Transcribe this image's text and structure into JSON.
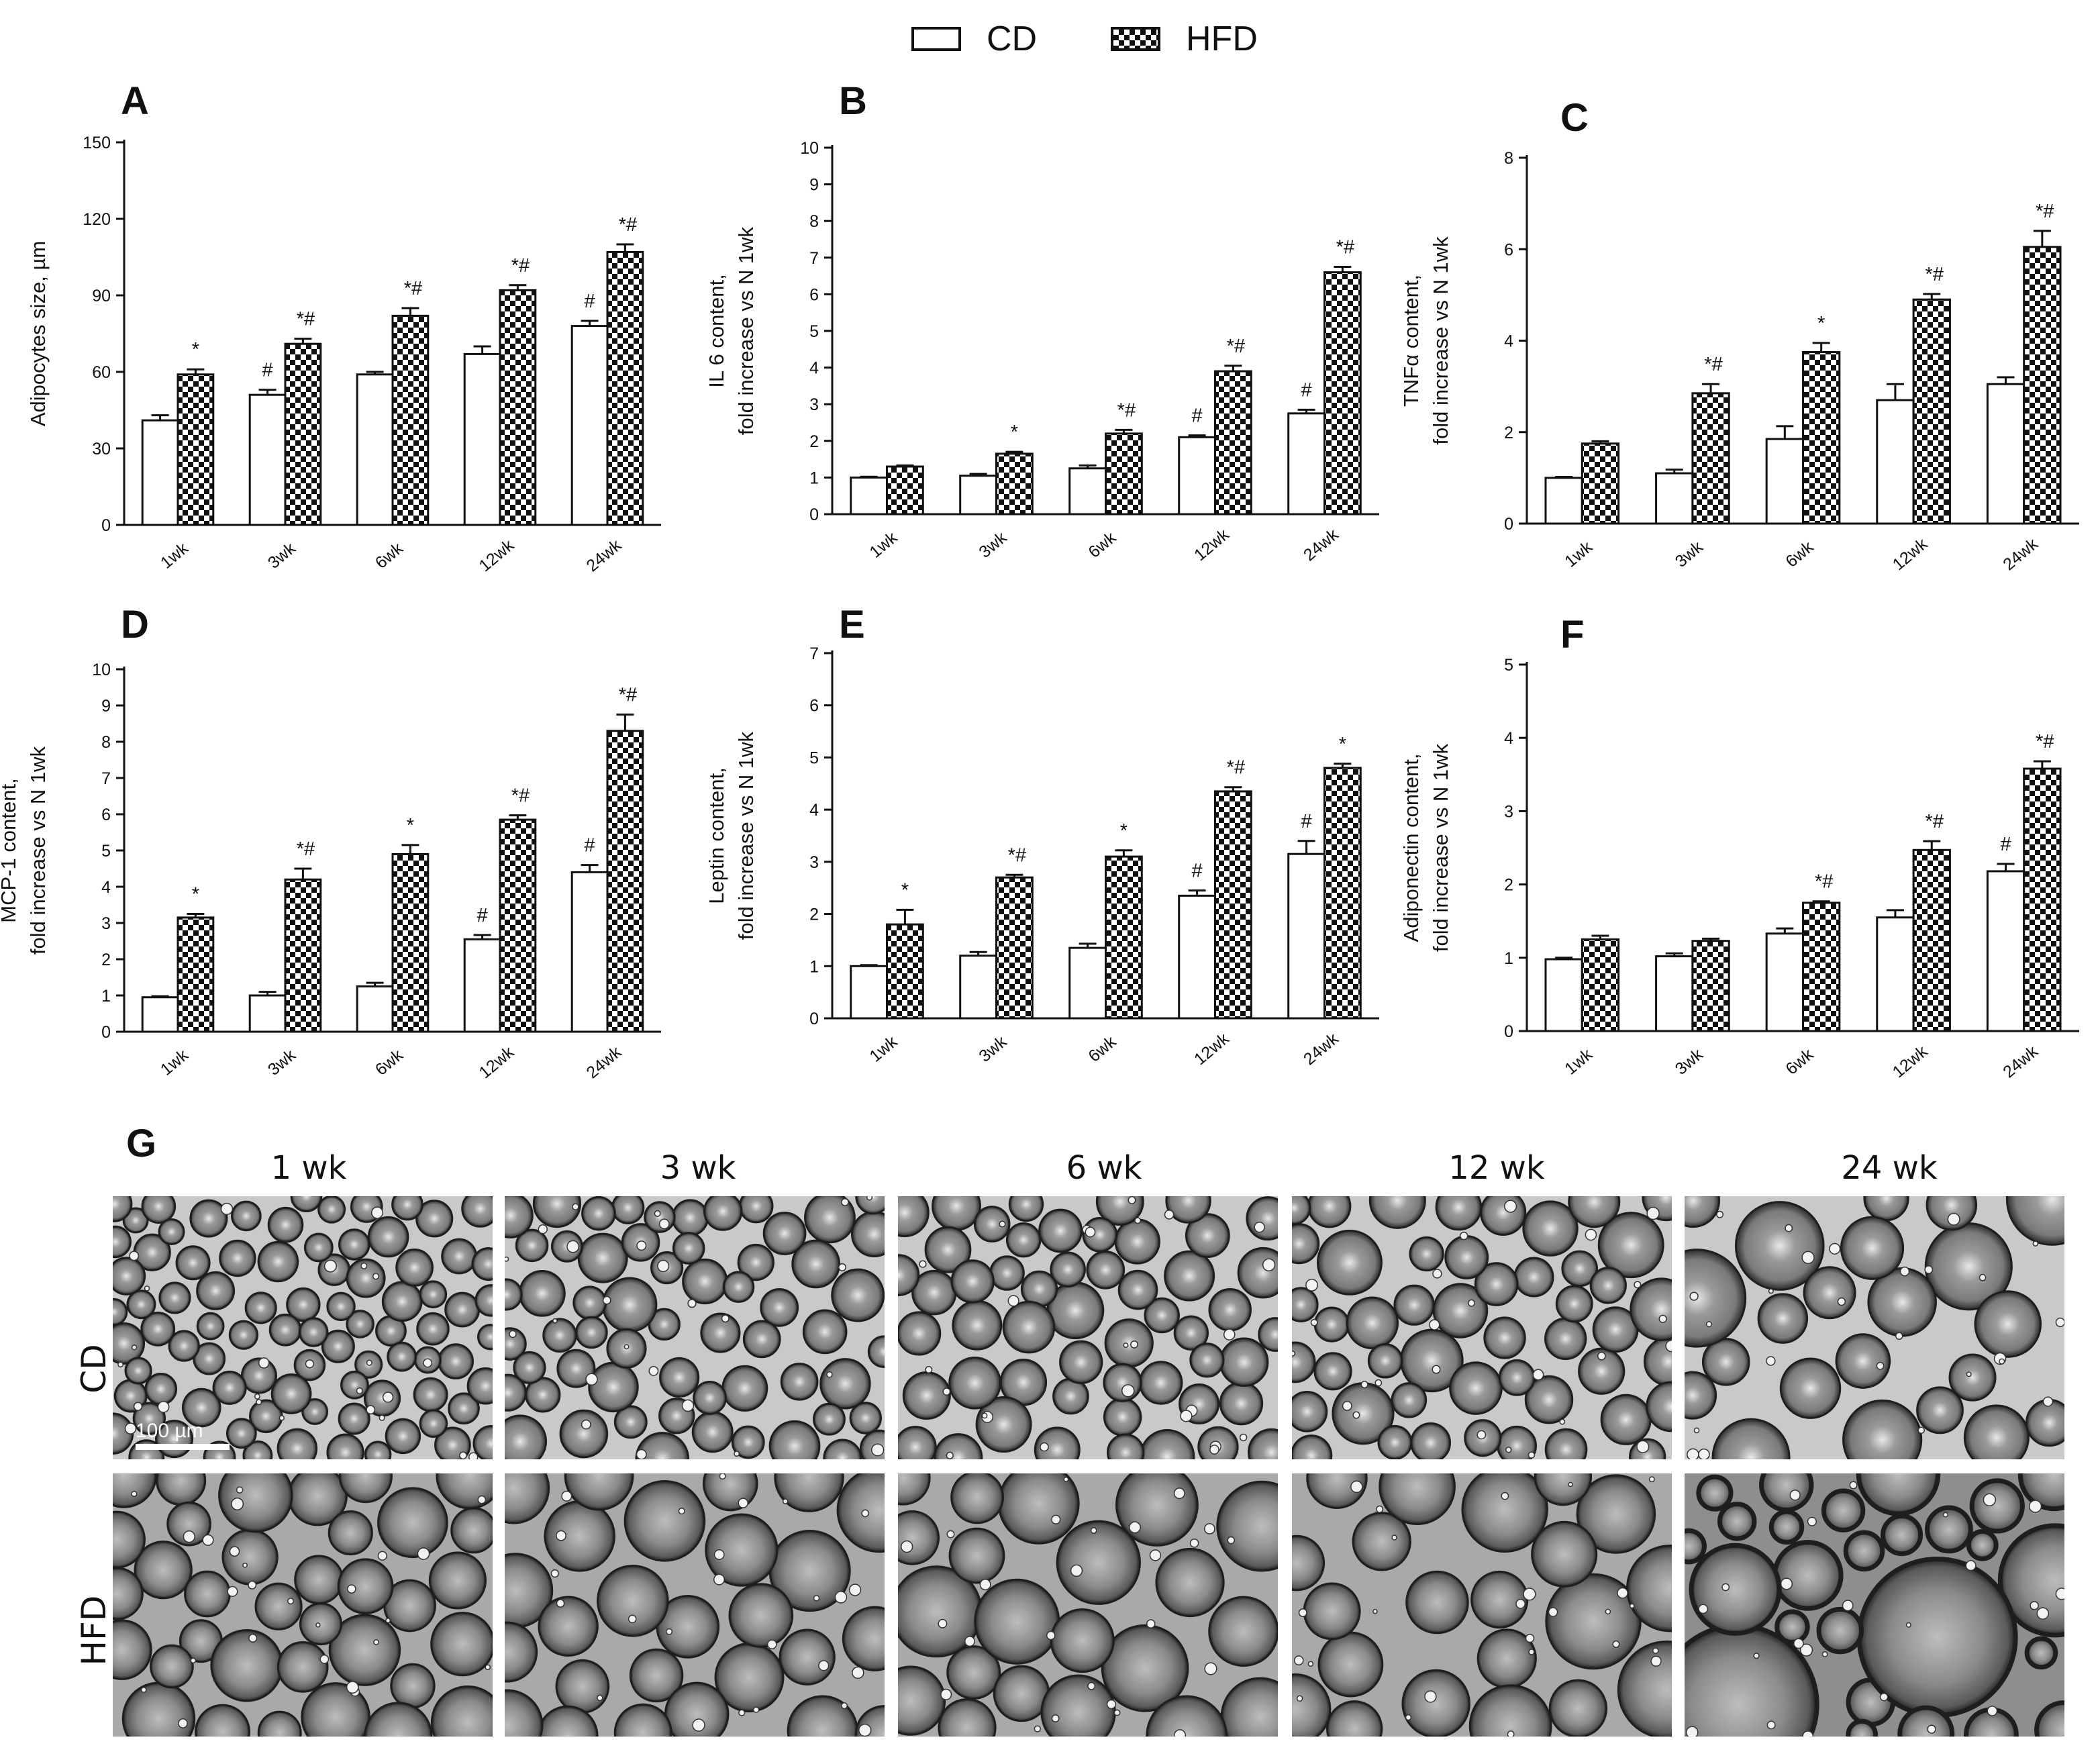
{
  "legend": [
    {
      "label": "CD",
      "fill": "white"
    },
    {
      "label": "HFD",
      "fill": "checker"
    }
  ],
  "colors": {
    "ink": "#111111",
    "cd_fill": "#ffffff",
    "hfd_dark": "#111111",
    "hfd_light": "#ffffff"
  },
  "chart_data": [
    {
      "panel": "A",
      "type": "bar",
      "ylabel": [
        "Adipocytes size, µm"
      ],
      "ylim": [
        0,
        150
      ],
      "yticks": [
        0,
        30,
        60,
        90,
        120,
        150
      ],
      "categories": [
        "1wk",
        "3wk",
        "6wk",
        "12wk",
        "24wk"
      ],
      "series": [
        {
          "name": "CD",
          "values": [
            41,
            51,
            59,
            67,
            78
          ],
          "errors": [
            2,
            2,
            1,
            3,
            2
          ],
          "annotations": [
            "",
            "#",
            "",
            "",
            "#"
          ]
        },
        {
          "name": "HFD",
          "values": [
            59,
            71,
            82,
            92,
            107
          ],
          "errors": [
            2,
            2,
            3,
            2,
            3
          ],
          "annotations": [
            "*",
            "*#",
            "*#",
            "*#",
            "*#"
          ]
        }
      ]
    },
    {
      "panel": "B",
      "type": "bar",
      "ylabel": [
        "IL 6  content,",
        "fold increase vs N 1wk"
      ],
      "ylim": [
        0,
        10
      ],
      "yticks": [
        0,
        1,
        2,
        3,
        4,
        5,
        6,
        7,
        8,
        9,
        10
      ],
      "categories": [
        "1wk",
        "3wk",
        "6wk",
        "12wk",
        "24wk"
      ],
      "series": [
        {
          "name": "CD",
          "values": [
            1.0,
            1.05,
            1.25,
            2.1,
            2.75
          ],
          "errors": [
            0.02,
            0.05,
            0.08,
            0.05,
            0.1
          ],
          "annotations": [
            "",
            "",
            "",
            "#",
            "#"
          ]
        },
        {
          "name": "HFD",
          "values": [
            1.3,
            1.65,
            2.2,
            3.9,
            6.6
          ],
          "errors": [
            0.03,
            0.05,
            0.1,
            0.15,
            0.15
          ],
          "annotations": [
            "",
            "*",
            "*#",
            "*#",
            "*#"
          ]
        }
      ]
    },
    {
      "panel": "C",
      "type": "bar",
      "ylabel": [
        "TNFα content,",
        "fold increase vs N 1wk"
      ],
      "ylim": [
        0,
        8
      ],
      "yticks": [
        0,
        2,
        4,
        6,
        8
      ],
      "categories": [
        "1wk",
        "3wk",
        "6wk",
        "12wk",
        "24wk"
      ],
      "series": [
        {
          "name": "CD",
          "values": [
            1.0,
            1.1,
            1.85,
            2.7,
            3.05
          ],
          "errors": [
            0.02,
            0.08,
            0.28,
            0.35,
            0.15
          ],
          "annotations": [
            "",
            "",
            "",
            "",
            ""
          ]
        },
        {
          "name": "HFD",
          "values": [
            1.75,
            2.85,
            3.75,
            4.9,
            6.05
          ],
          "errors": [
            0.05,
            0.2,
            0.2,
            0.12,
            0.35
          ],
          "annotations": [
            "",
            "*#",
            "*",
            "*#",
            "*#"
          ]
        }
      ]
    },
    {
      "panel": "D",
      "type": "bar",
      "ylabel": [
        "MCP-1 content,",
        "fold increase vs N 1wk"
      ],
      "ylim": [
        0,
        10
      ],
      "yticks": [
        0,
        1,
        2,
        3,
        4,
        5,
        6,
        7,
        8,
        9,
        10
      ],
      "categories": [
        "1wk",
        "3wk",
        "6wk",
        "12wk",
        "24wk"
      ],
      "series": [
        {
          "name": "CD",
          "values": [
            0.95,
            1.0,
            1.25,
            2.55,
            4.4
          ],
          "errors": [
            0.03,
            0.1,
            0.1,
            0.12,
            0.2
          ],
          "annotations": [
            "",
            "",
            "",
            "#",
            "#"
          ]
        },
        {
          "name": "HFD",
          "values": [
            3.15,
            4.2,
            4.9,
            5.85,
            8.3
          ],
          "errors": [
            0.1,
            0.3,
            0.25,
            0.12,
            0.45
          ],
          "annotations": [
            "*",
            "*#",
            "*",
            "*#",
            "*#"
          ]
        }
      ]
    },
    {
      "panel": "E",
      "type": "bar",
      "ylabel": [
        "Leptin content,",
        "fold increase vs N 1wk"
      ],
      "ylim": [
        0,
        7
      ],
      "yticks": [
        0,
        1,
        2,
        3,
        4,
        5,
        6,
        7
      ],
      "categories": [
        "1wk",
        "3wk",
        "6wk",
        "12wk",
        "24wk"
      ],
      "series": [
        {
          "name": "CD",
          "values": [
            1.0,
            1.2,
            1.35,
            2.35,
            3.15
          ],
          "errors": [
            0.02,
            0.07,
            0.08,
            0.1,
            0.25
          ],
          "annotations": [
            "",
            "",
            "",
            "#",
            "#"
          ]
        },
        {
          "name": "HFD",
          "values": [
            1.8,
            2.7,
            3.1,
            4.35,
            4.8
          ],
          "errors": [
            0.28,
            0.05,
            0.12,
            0.08,
            0.08
          ],
          "annotations": [
            "*",
            "*#",
            "*",
            "*#",
            "*"
          ]
        }
      ]
    },
    {
      "panel": "F",
      "type": "bar",
      "ylabel": [
        "Adiponectin content,",
        "fold increase vs N 1wk"
      ],
      "ylim": [
        0,
        5
      ],
      "yticks": [
        0,
        1,
        2,
        3,
        4,
        5
      ],
      "categories": [
        "1wk",
        "3wk",
        "6wk",
        "12wk",
        "24wk"
      ],
      "series": [
        {
          "name": "CD",
          "values": [
            0.98,
            1.02,
            1.33,
            1.55,
            2.18
          ],
          "errors": [
            0.02,
            0.04,
            0.07,
            0.1,
            0.1
          ],
          "annotations": [
            "",
            "",
            "",
            "",
            "#"
          ]
        },
        {
          "name": "HFD",
          "values": [
            1.25,
            1.23,
            1.75,
            2.47,
            3.58
          ],
          "errors": [
            0.05,
            0.03,
            0.02,
            0.12,
            0.1
          ],
          "annotations": [
            "",
            "",
            "*#",
            "*#",
            "*#"
          ]
        }
      ]
    }
  ],
  "micrographs": {
    "letter": "G",
    "columns": [
      "1 wk",
      "3 wk",
      "6 wk",
      "12 wk",
      "24 wk"
    ],
    "rows": [
      "CD",
      "HFD"
    ],
    "scale_bar": "100 µm"
  }
}
